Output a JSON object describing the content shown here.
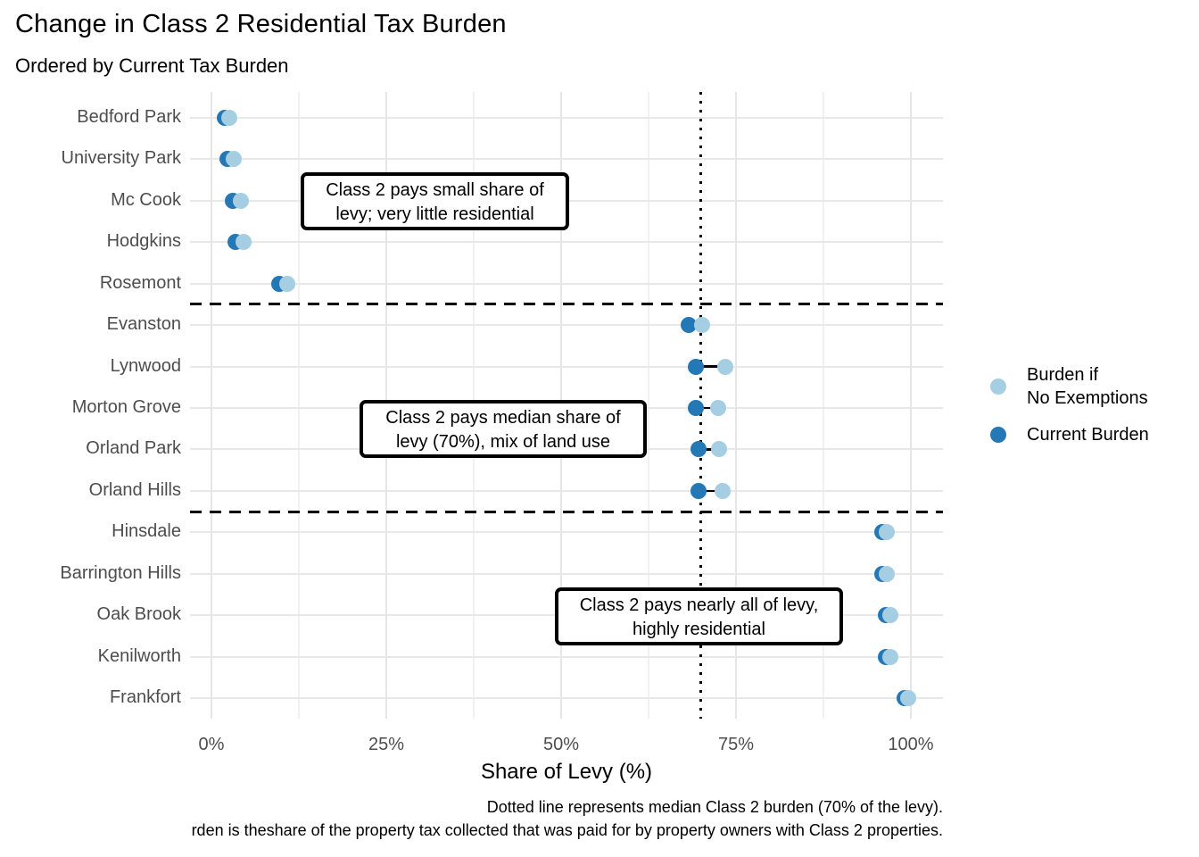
{
  "title": "Change in Class 2 Residential Tax Burden",
  "subtitle": "Ordered by Current Tax Burden",
  "colors": {
    "no_exemptions": "#a6cee3",
    "current": "#2478b5",
    "axis_text": "#4d4d4d",
    "grid": "#e8e8e8"
  },
  "legend": {
    "items": [
      {
        "swatch": "no_exemptions",
        "line1": "Burden if",
        "line2": "No Exemptions"
      },
      {
        "swatch": "current",
        "line1": "Current Burden"
      }
    ]
  },
  "chart_data": {
    "type": "scatter",
    "subtype": "horizontal-dot-plot",
    "title": "Change in Class 2 Residential Tax Burden",
    "subtitle": "Ordered by Current Tax Burden",
    "xlabel": "Share of Levy (%)",
    "x_ticks": [
      "0%",
      "25%",
      "50%",
      "75%",
      "100%"
    ],
    "x_tick_values": [
      0,
      25,
      50,
      75,
      100
    ],
    "x_minor_tick_values": [
      12.5,
      37.5,
      62.5,
      87.5
    ],
    "xlim": [
      0,
      100
    ],
    "grid": true,
    "median_line_x": 70,
    "categories": [
      "Bedford Park",
      "University Park",
      "Mc Cook",
      "Hodgkins",
      "Rosemont",
      "Evanston",
      "Lynwood",
      "Morton Grove",
      "Orland Park",
      "Orland Hills",
      "Hinsdale",
      "Barrington Hills",
      "Oak Brook",
      "Kenilworth",
      "Frankfort"
    ],
    "series": [
      {
        "name": "Burden if No Exemptions",
        "values": [
          2.6,
          3.2,
          4.2,
          4.6,
          10.8,
          70.2,
          73.5,
          72.4,
          72.6,
          73.1,
          96.6,
          96.6,
          97.1,
          97.1,
          99.6
        ]
      },
      {
        "name": "Current Burden",
        "values": [
          1.9,
          2.3,
          3.1,
          3.4,
          9.7,
          68.2,
          69.3,
          69.2,
          69.6,
          69.7,
          95.9,
          95.9,
          96.4,
          96.4,
          99.1
        ]
      }
    ],
    "group_separators_after_index": [
      4,
      9
    ],
    "annotations": [
      {
        "line1": "Class 2 pays small share of",
        "line2": "levy; very little residential"
      },
      {
        "line1": "Class 2 pays median share of",
        "line2": "levy (70%), mix of land use"
      },
      {
        "line1": "Class 2 pays nearly all of levy,",
        "line2": "highly residential"
      }
    ],
    "legend_position": "right"
  },
  "caption": {
    "line1": "Dotted line represents median Class 2 burden (70% of the levy).",
    "line2": "rden is theshare of the property tax collected that was paid for by property owners with Class 2 properties."
  }
}
